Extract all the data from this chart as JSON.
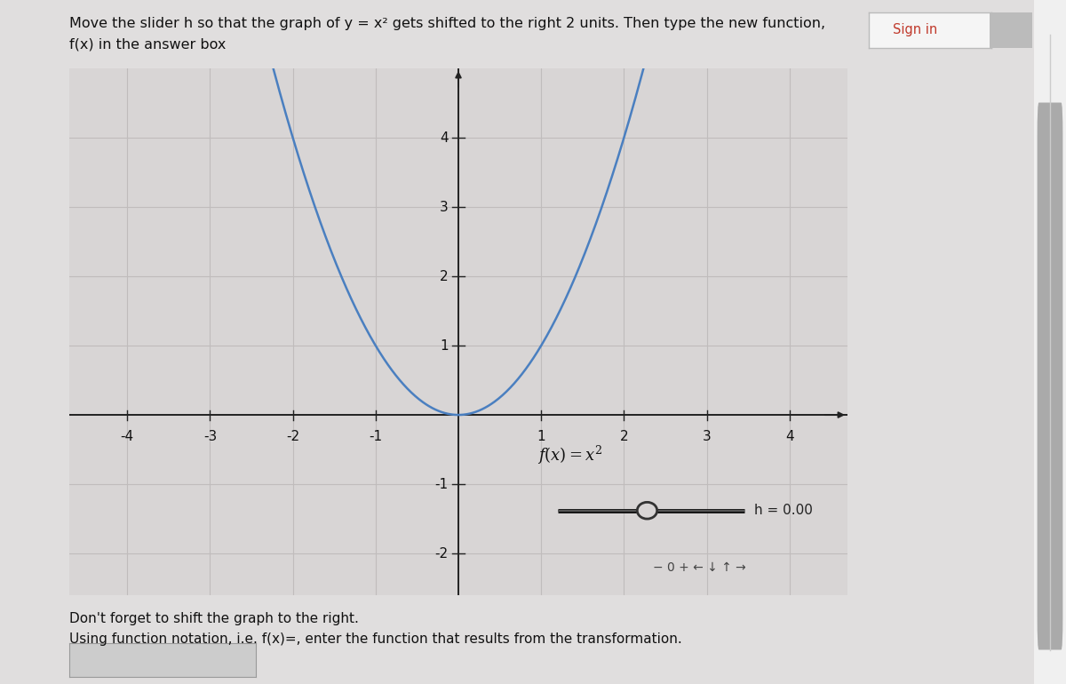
{
  "title_line1": "Move the slider h so that the graph of y = x² gets shifted to the right 2 units. Then type the new function,",
  "title_line2": "f(x) in the answer box",
  "bg_color": "#e0dede",
  "plot_bg_color": "#d8d5d5",
  "grid_color": "#c0bcbc",
  "curve_color": "#4a7fc0",
  "curve_linewidth": 1.8,
  "axis_color": "#222222",
  "xlim": [
    -4.7,
    4.7
  ],
  "ylim": [
    -2.6,
    5.0
  ],
  "xticks": [
    -4,
    -3,
    -2,
    -1,
    1,
    2,
    3,
    4
  ],
  "yticks": [
    -2,
    -1,
    1,
    2,
    3,
    4
  ],
  "function_label": "f(x) = x²",
  "slider_label": "h = 0.00",
  "bottom_text1": "Don't forget to shift the graph to the right.",
  "bottom_text2": "Using function notation, i.e. f(x)=, enter the function that results from the transformation.",
  "sign_in_text": "Sign in"
}
